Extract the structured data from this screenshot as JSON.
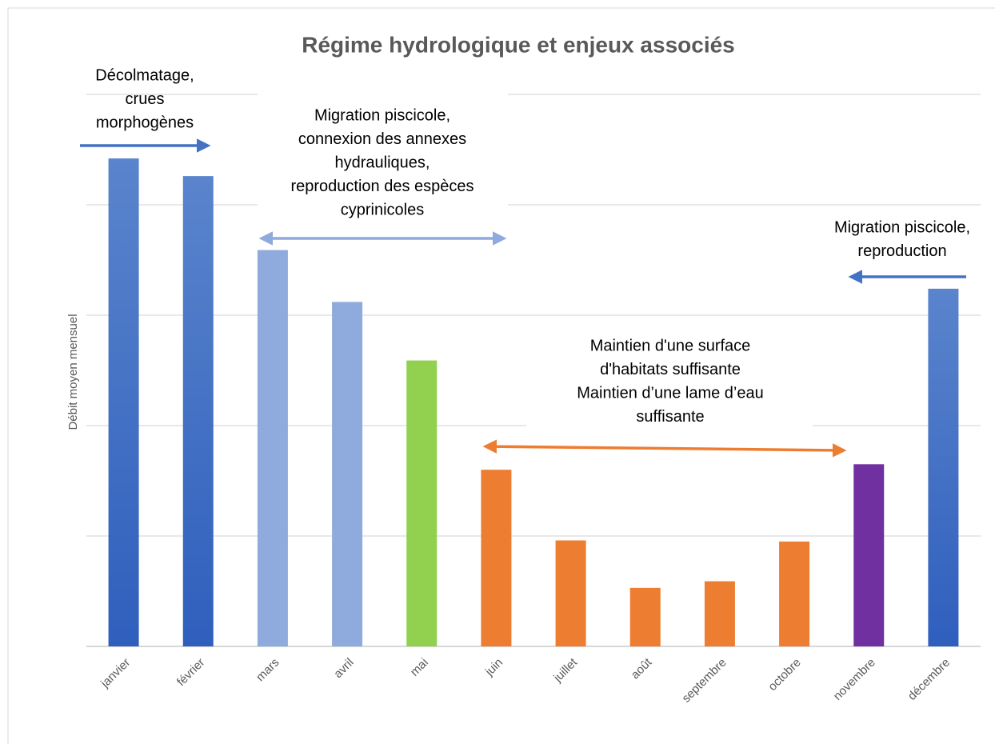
{
  "chart_data": {
    "type": "bar",
    "title": "Régime hydrologique et enjeux associés",
    "y_label": "Débit moyen mensuel",
    "categories": [
      "janvier",
      "février",
      "mars",
      "avril",
      "mai",
      "juin",
      "juillet",
      "août",
      "septembre",
      "octobre",
      "novembre",
      "décembre"
    ],
    "values": [
      4.42,
      4.26,
      3.59,
      3.12,
      2.59,
      1.6,
      0.96,
      0.53,
      0.59,
      0.95,
      1.65,
      3.24
    ],
    "colors": [
      "#4472c4",
      "#4472c4",
      "#8faadc",
      "#8faadc",
      "#92d050",
      "#ed7d31",
      "#ed7d31",
      "#ed7d31",
      "#ed7d31",
      "#ed7d31",
      "#7030a0",
      "#4472c4"
    ],
    "ylim": [
      0,
      5
    ],
    "yticks": [
      0,
      1,
      2,
      3,
      4,
      5
    ],
    "grid": true,
    "annotations": [
      {
        "lines": [
          "Décolmatage,",
          "crues",
          "morphogènes"
        ],
        "color": "#4472c4"
      },
      {
        "lines": [
          "Migration piscicole,",
          "connexion des annexes",
          "hydrauliques,",
          "reproduction des espèces",
          "cyprinicoles"
        ],
        "color": "#8faadc"
      },
      {
        "lines": [
          "Migration piscicole,",
          "reproduction"
        ],
        "color": "#4472c4"
      },
      {
        "lines": [
          "Maintien d'une surface",
          "d'habitats suffisante",
          "Maintien d’une lame d’eau",
          "suffisante"
        ],
        "color": "#ed7d31"
      }
    ]
  }
}
